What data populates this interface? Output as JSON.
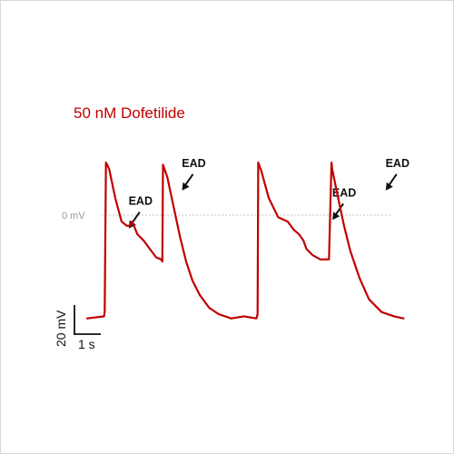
{
  "chart_data": {
    "type": "line",
    "title": "50 nM Dofetilide",
    "reference_line": {
      "label": "0 mV",
      "y": 0
    },
    "scale_bar": {
      "voltage_label": "20 mV",
      "time_label": "1 s"
    },
    "series_color": "#c00000",
    "annotations": [
      {
        "label": "EAD",
        "x": 0.65,
        "y": -8
      },
      {
        "label": "EAD",
        "x": 1.5,
        "y": 10
      },
      {
        "label": "EAD",
        "x": 3.9,
        "y": -4
      },
      {
        "label": "EAD",
        "x": 4.75,
        "y": 10
      }
    ],
    "x_unit": "s",
    "y_unit": "mV",
    "ylim": [
      -52,
      26
    ],
    "series": [
      {
        "x": [
          0.0,
          0.27,
          0.28,
          0.3,
          0.35,
          0.45,
          0.55,
          0.63,
          0.68,
          0.72,
          0.8,
          0.9,
          1.0,
          1.1,
          1.18,
          1.2,
          1.21,
          1.28,
          1.38,
          1.48,
          1.58,
          1.68,
          1.8,
          1.95,
          2.1,
          2.3,
          2.5,
          2.7,
          2.72,
          2.73,
          2.78,
          2.9,
          3.05,
          3.2,
          3.3,
          3.38,
          3.45,
          3.5,
          3.6,
          3.72,
          3.86,
          3.9,
          3.91,
          4.0,
          4.1,
          4.2,
          4.35,
          4.5,
          4.7,
          4.9,
          5.05
        ],
        "y": [
          -49,
          -48,
          -46,
          25,
          22,
          8,
          -3,
          -5,
          -5,
          -3,
          -9,
          -12,
          -16,
          -20,
          -21,
          -22,
          24,
          18,
          4,
          -10,
          -22,
          -31,
          -38,
          -44,
          -47,
          -49,
          -48,
          -49,
          -47,
          25,
          21,
          8,
          -1,
          -3,
          -7,
          -9,
          -12,
          -16,
          -19,
          -21,
          -21,
          25,
          22,
          9,
          -5,
          -17,
          -30,
          -40,
          -46,
          -48,
          -49
        ]
      }
    ]
  }
}
